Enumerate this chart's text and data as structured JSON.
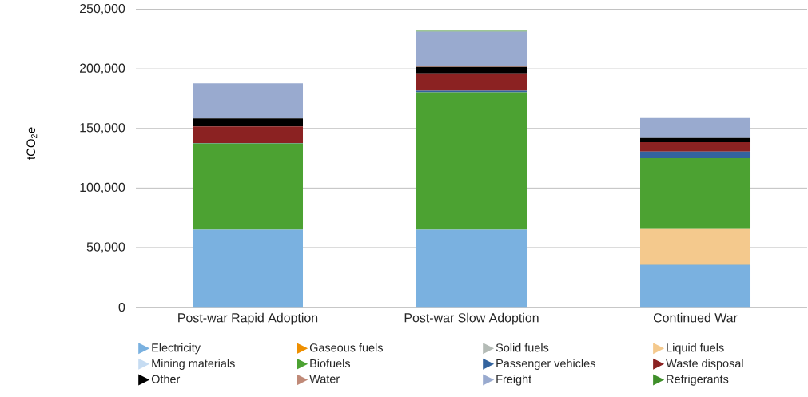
{
  "chart_data": {
    "type": "bar",
    "stacked": true,
    "ylabel": "tCO$_{2}$e",
    "categories": [
      "Post-war Rapid Adoption",
      "Post-war Slow Adoption",
      "Continued War"
    ],
    "ylim": [
      0,
      250000
    ],
    "yticks": [
      0,
      {
        "value": 50000,
        "label": "50,000"
      },
      {
        "value": 100000,
        "label": "100,000"
      },
      {
        "value": 150000,
        "label": "150,000"
      },
      {
        "value": 200000,
        "label": "200,000"
      },
      {
        "value": 250000,
        "label": "250,000"
      }
    ],
    "grid": "y",
    "legend": "bottom",
    "series": [
      {
        "name": "Electricity",
        "color": "#7ab1e0",
        "values": [
          65000,
          65000,
          35500
        ]
      },
      {
        "name": "Gaseous fuels",
        "color": "#ee8f00",
        "values": [
          0,
          0,
          1000
        ]
      },
      {
        "name": "Solid fuels",
        "color": "#b4bbb6",
        "values": [
          0,
          0,
          0
        ]
      },
      {
        "name": "Liquid fuels",
        "color": "#f4c98d",
        "values": [
          0,
          0,
          29000
        ]
      },
      {
        "name": "Mining materials",
        "color": "#c6dcf2",
        "values": [
          0,
          0,
          0
        ]
      },
      {
        "name": "Biofuels",
        "color": "#4ca232",
        "values": [
          72400,
          115300,
          59600
        ]
      },
      {
        "name": "Passenger vehicles",
        "color": "#33639e",
        "values": [
          300,
          1300,
          5400
        ]
      },
      {
        "name": "Waste disposal",
        "color": "#8b2222",
        "values": [
          14000,
          14000,
          8000
        ]
      },
      {
        "name": "Other",
        "color": "#000000",
        "values": [
          6700,
          6000,
          3400
        ]
      },
      {
        "name": "Water",
        "color": "#c08a78",
        "values": [
          0,
          800,
          0
        ]
      },
      {
        "name": "Freight",
        "color": "#99aacf",
        "values": [
          29500,
          28800,
          16800
        ]
      },
      {
        "name": "Refrigerants",
        "color": "#3f8f2a",
        "values": [
          0,
          700,
          0
        ]
      }
    ]
  }
}
